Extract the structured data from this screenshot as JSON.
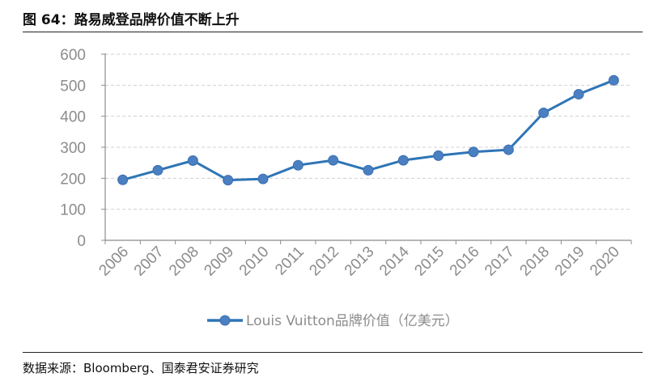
{
  "header": {
    "title": "图 64：路易威登品牌价值不断上升"
  },
  "footer": {
    "source": "数据来源：Bloomberg、国泰君安证券研究"
  },
  "colors": {
    "series": "#2e75b6",
    "grid": "#d0d0d0",
    "axis": "#8c8c8c"
  },
  "chart_data": {
    "type": "line",
    "title": "",
    "xlabel": "",
    "ylabel": "",
    "ylim": [
      0,
      600
    ],
    "yticks": [
      "0",
      "100",
      "200",
      "300",
      "400",
      "500",
      "600"
    ],
    "categories": [
      "2006",
      "2007",
      "2008",
      "2009",
      "2010",
      "2011",
      "2012",
      "2013",
      "2014",
      "2015",
      "2016",
      "2017",
      "2018",
      "2019",
      "2020"
    ],
    "series": [
      {
        "name": "Louis Vuitton品牌价值（亿美元）",
        "values": [
          195,
          226,
          257,
          194,
          198,
          242,
          258,
          226,
          258,
          273,
          285,
          292,
          411,
          471,
          516
        ]
      }
    ],
    "grid": "horizontal dashed",
    "legend_position": "bottom"
  }
}
